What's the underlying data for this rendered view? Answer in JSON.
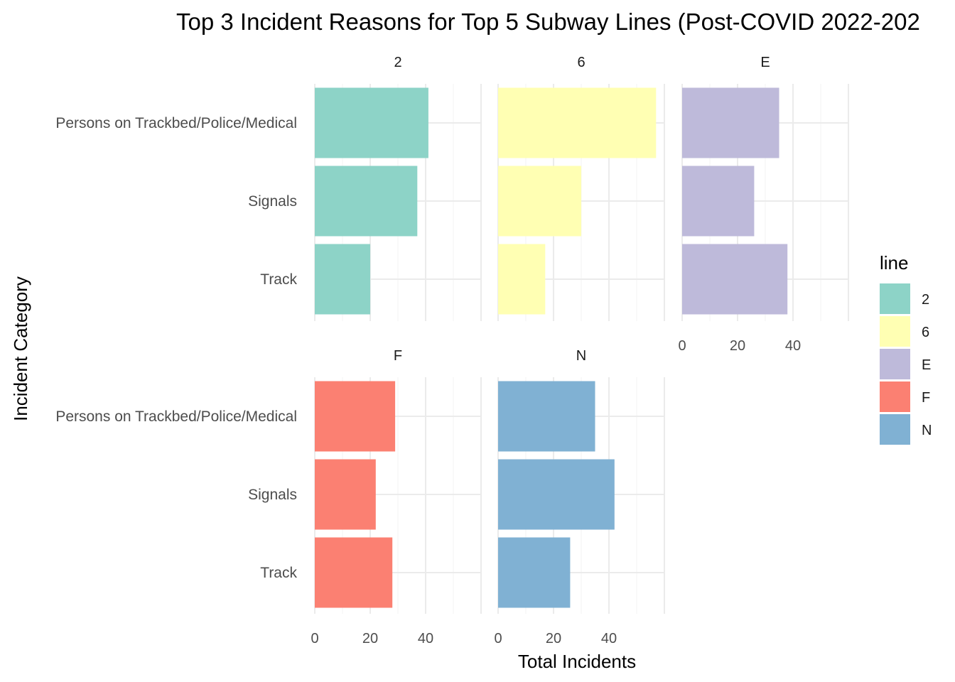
{
  "chart_data": {
    "type": "bar",
    "orientation": "horizontal",
    "faceted": true,
    "title": "Top 3 Incident Reasons for Top 5 Subway Lines (Post-COVID 2022-202",
    "xlabel": "Total Incidents",
    "ylabel": "Incident Category",
    "categories": [
      "Persons on Trackbed/Police/Medical",
      "Signals",
      "Track"
    ],
    "xlim": [
      0,
      60
    ],
    "xticks": [
      0,
      20,
      40
    ],
    "grid": true,
    "legend": {
      "title": "line",
      "position": "right"
    },
    "series": [
      {
        "name": "2",
        "color": "#8DD3C7",
        "values": [
          41,
          37,
          20
        ]
      },
      {
        "name": "6",
        "color": "#FFFFB3",
        "values": [
          57,
          30,
          17
        ]
      },
      {
        "name": "E",
        "color": "#BEBADA",
        "values": [
          35,
          26,
          38
        ]
      },
      {
        "name": "F",
        "color": "#FB8072",
        "values": [
          29,
          22,
          28
        ]
      },
      {
        "name": "N",
        "color": "#80B1D3",
        "values": [
          35,
          42,
          26
        ]
      }
    ]
  }
}
